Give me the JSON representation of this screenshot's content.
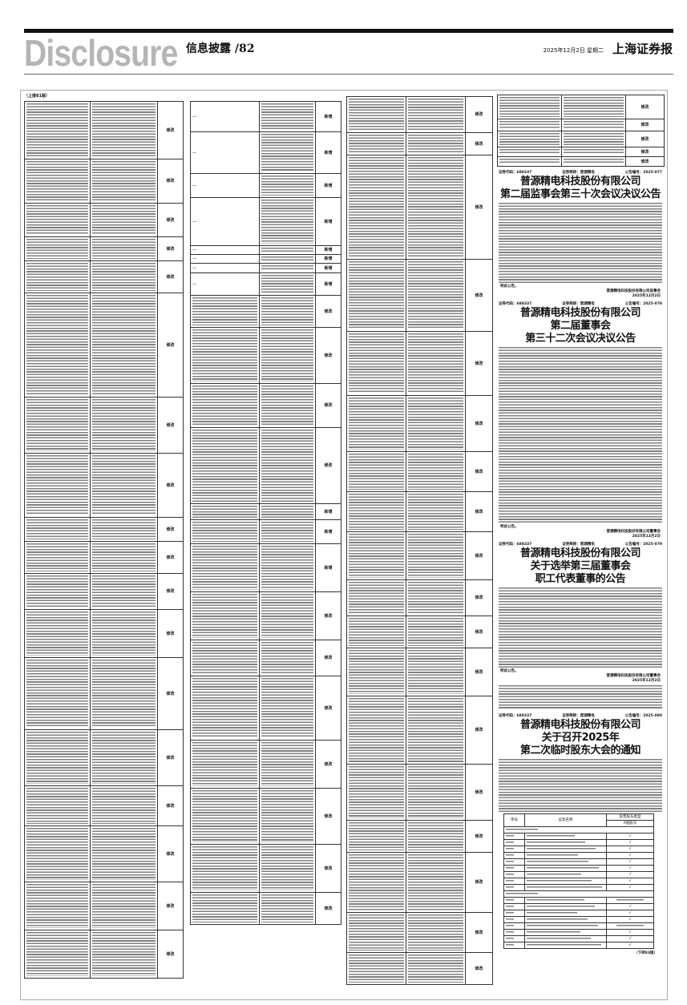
{
  "masthead": {
    "brand": "Disclosure",
    "section": "信息披露",
    "page": "/82",
    "date": "2025年12月2日 星期二",
    "paper": "上海证券报"
  },
  "continuation": "（上接81版）",
  "labels": {
    "modify": "修改",
    "add": "新增",
    "dash": "—"
  },
  "col1_rows": [
    "修改",
    "修改",
    "修改",
    "修改",
    "修改",
    "修改",
    "修改",
    "修改",
    "修改",
    "修改",
    "修改",
    "修改",
    "修改",
    "修改",
    "修改",
    "修改",
    "修改",
    "修改"
  ],
  "col2_rows": [
    "新增",
    "新增",
    "新增",
    "新增",
    "新增",
    "新增",
    "新增",
    "新增",
    "修改",
    "修改",
    "修改",
    "修改",
    "新增",
    "新增",
    "新增",
    "修改",
    "修改",
    "修改",
    "修改",
    "修改",
    "修改",
    "修改"
  ],
  "col3_rows": [
    "修改",
    "修改",
    "修改",
    "修改",
    "修改",
    "修改",
    "修改",
    "修改",
    "修改",
    "修改",
    "修改",
    "修改",
    "修改",
    "修改",
    "修改",
    "修改",
    "修改",
    "修改"
  ],
  "right_top_rows": [
    "修改",
    "修改",
    "修改",
    "修改",
    "修改"
  ],
  "announcements": [
    {
      "code": "证券代码：688337",
      "abbr": "证券简称：普源精电",
      "no": "公告编号：2025-077",
      "company": "普源精电科技股份有限公司",
      "title_lines": [
        "第二届监事会第三十次会议决议公告"
      ],
      "closing": "特此公告。",
      "signer": "普源精电科技股份有限公司监事会",
      "date": "2025年12月2日"
    },
    {
      "code": "证券代码：688337",
      "abbr": "证券简称：普源精电",
      "no": "公告编号：2025-078",
      "company": "普源精电科技股份有限公司",
      "title_lines": [
        "第二届董事会",
        "第三十二次会议决议公告"
      ],
      "closing": "特此公告。",
      "signer": "普源精电科技股份有限公司董事会",
      "date": "2025年12月2日"
    },
    {
      "code": "证券代码：688337",
      "abbr": "证券简称：普源精电",
      "no": "公告编号：2025-079",
      "company": "普源精电科技股份有限公司",
      "title_lines": [
        "关于选举第三届董事会",
        "职工代表董事的公告"
      ],
      "closing": "特此公告。",
      "signer": "普源精电科技股份有限公司董事会",
      "date": "2025年12月2日"
    },
    {
      "code": "证券代码：688337",
      "abbr": "证券简称：普源精电",
      "no": "公告编号：2025-080",
      "company": "普源精电科技股份有限公司",
      "title_lines": [
        "关于召开2025年",
        "第二次临时股东大会的通知"
      ]
    }
  ],
  "vote_table": {
    "col_no": "序号",
    "col_name": "议案名称",
    "col_type": "投票股东类型",
    "col_a": "A股股东",
    "checks": [
      "√",
      "√",
      "√",
      "√",
      "√",
      "√",
      "√",
      "√",
      "√",
      "",
      "√",
      "√",
      "√",
      "",
      "√",
      "√",
      "√"
    ],
    "continued": "（下转83版）"
  }
}
